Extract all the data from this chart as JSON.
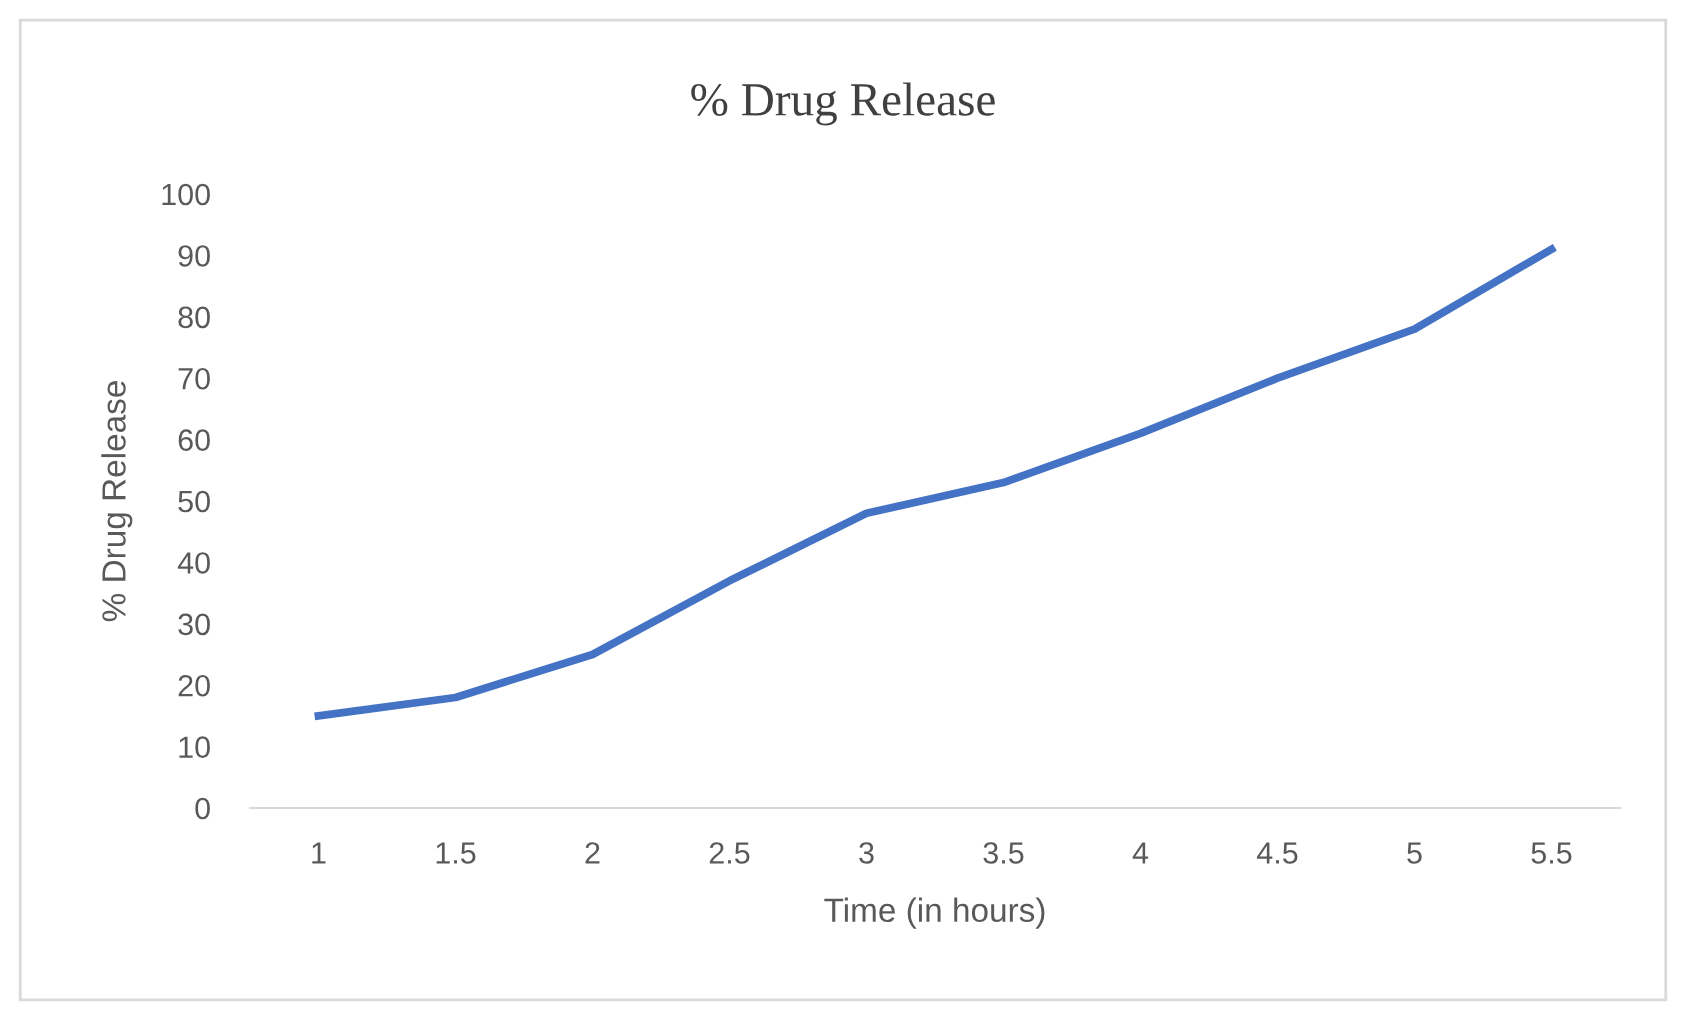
{
  "chart_data": {
    "type": "line",
    "title": "% Drug Release",
    "xlabel": "Time (in hours)",
    "ylabel": "% Drug Release",
    "categories": [
      "1",
      "1.5",
      "2",
      "2.5",
      "3",
      "3.5",
      "4",
      "4.5",
      "5",
      "5.5"
    ],
    "series": [
      {
        "color": "#4472c4",
        "values": [
          15,
          18,
          25,
          37,
          48,
          53,
          61,
          70,
          78,
          91
        ]
      }
    ],
    "ylim": [
      0,
      100
    ],
    "yticks": [
      0,
      10,
      20,
      30,
      40,
      50,
      60,
      70,
      80,
      90,
      100
    ],
    "grid": false,
    "legend": false,
    "marker": "none",
    "line_style": "solid"
  }
}
